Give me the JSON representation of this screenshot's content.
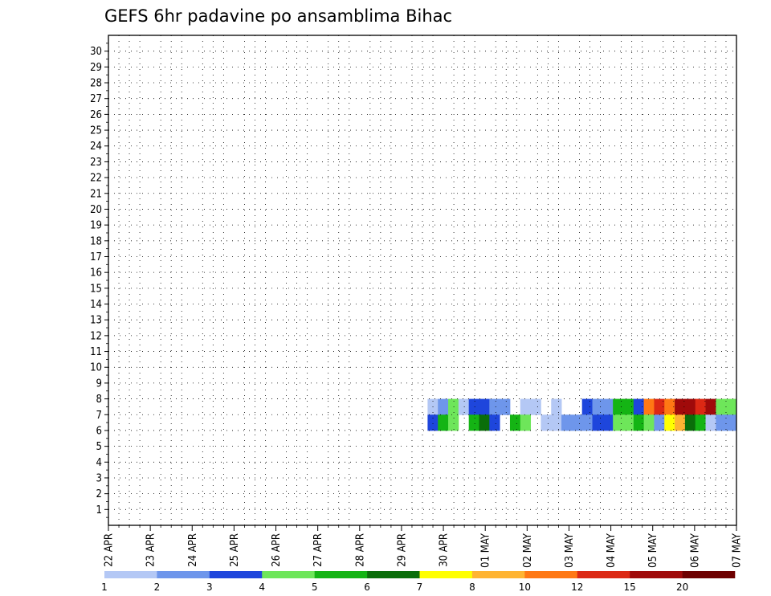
{
  "chart_data": {
    "type": "heatmap",
    "title": "GEFS 6hr padavine po ansamblima Bihac",
    "x_tick_labels": [
      "22 APR",
      "23 APR",
      "24 APR",
      "25 APR",
      "26 APR",
      "27 APR",
      "28 APR",
      "29 APR",
      "30 APR",
      "01 MAY",
      "02 MAY",
      "03 MAY",
      "04 MAY",
      "05 MAY",
      "06 MAY",
      "07 MAY"
    ],
    "y_tick_labels": [
      "1",
      "2",
      "3",
      "4",
      "5",
      "6",
      "7",
      "8",
      "9",
      "10",
      "11",
      "12",
      "13",
      "14",
      "15",
      "16",
      "17",
      "18",
      "19",
      "20",
      "21",
      "22",
      "23",
      "24",
      "25",
      "26",
      "27",
      "28",
      "29",
      "30"
    ],
    "x_steps": 61,
    "y_members": 31,
    "grid": true,
    "legend_position": "bottom",
    "colorbar": {
      "labels": [
        "1",
        "2",
        "3",
        "4",
        "5",
        "6",
        "7",
        "8",
        "10",
        "12",
        "15",
        "20"
      ],
      "colors": [
        "#b4c8f5",
        "#6e96eb",
        "#1e46dc",
        "#6ee65a",
        "#14b414",
        "#0a6e0a",
        "#ffff00",
        "#ffb432",
        "#ff7814",
        "#dc2814",
        "#a00a0a",
        "#6e0000"
      ]
    },
    "cells": [
      [
        31,
        7,
        0
      ],
      [
        32,
        7,
        1
      ],
      [
        33,
        7,
        3
      ],
      [
        34,
        7,
        0
      ],
      [
        35,
        7,
        2
      ],
      [
        36,
        7,
        2
      ],
      [
        37,
        7,
        1
      ],
      [
        38,
        7,
        1
      ],
      [
        40,
        7,
        0
      ],
      [
        41,
        7,
        0
      ],
      [
        43,
        7,
        0
      ],
      [
        46,
        7,
        2
      ],
      [
        47,
        7,
        1
      ],
      [
        48,
        7,
        1
      ],
      [
        49,
        7,
        4
      ],
      [
        50,
        7,
        4
      ],
      [
        51,
        7,
        2
      ],
      [
        52,
        7,
        8
      ],
      [
        53,
        7,
        9
      ],
      [
        54,
        7,
        8
      ],
      [
        55,
        7,
        10
      ],
      [
        56,
        7,
        10
      ],
      [
        57,
        7,
        9
      ],
      [
        58,
        7,
        10
      ],
      [
        59,
        7,
        3
      ],
      [
        60,
        7,
        3
      ],
      [
        31,
        6,
        2
      ],
      [
        32,
        6,
        4
      ],
      [
        33,
        6,
        3
      ],
      [
        35,
        6,
        4
      ],
      [
        36,
        6,
        5
      ],
      [
        37,
        6,
        2
      ],
      [
        39,
        6,
        4
      ],
      [
        40,
        6,
        3
      ],
      [
        42,
        6,
        0
      ],
      [
        43,
        6,
        0
      ],
      [
        44,
        6,
        1
      ],
      [
        45,
        6,
        1
      ],
      [
        46,
        6,
        1
      ],
      [
        47,
        6,
        2
      ],
      [
        48,
        6,
        2
      ],
      [
        49,
        6,
        3
      ],
      [
        50,
        6,
        3
      ],
      [
        51,
        6,
        4
      ],
      [
        52,
        6,
        3
      ],
      [
        53,
        6,
        1
      ],
      [
        54,
        6,
        6
      ],
      [
        55,
        6,
        7
      ],
      [
        56,
        6,
        5
      ],
      [
        57,
        6,
        4
      ],
      [
        58,
        6,
        0
      ],
      [
        59,
        6,
        1
      ],
      [
        60,
        6,
        1
      ]
    ]
  }
}
